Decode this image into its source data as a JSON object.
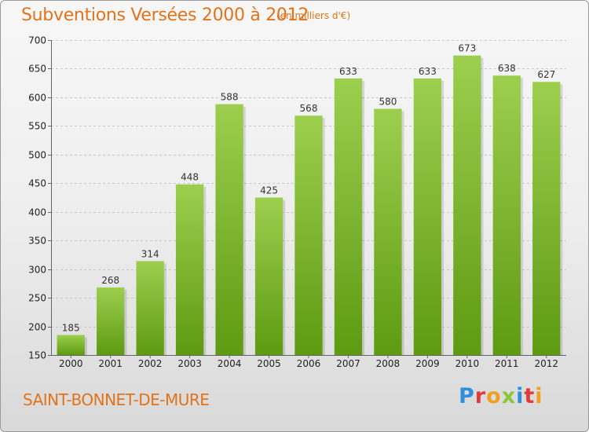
{
  "header": {
    "title": "Subventions Versées 2000 à 2012",
    "subtitle": "(en milliers d'€)"
  },
  "footer": {
    "commune": "SAINT-BONNET-DE-MURE",
    "logo_text": "Proxiti",
    "logo_colors": [
      "#2f8fd8",
      "#e23b3b",
      "#f0a020",
      "#8cc63f",
      "#2f8fd8",
      "#e23b3b",
      "#f0a020"
    ]
  },
  "chart_data": {
    "type": "bar",
    "title": "Subventions Versées 2000 à 2012",
    "subtitle": "(en milliers d'€)",
    "categories": [
      "2000",
      "2001",
      "2002",
      "2003",
      "2004",
      "2005",
      "2006",
      "2007",
      "2008",
      "2009",
      "2010",
      "2011",
      "2012"
    ],
    "values": [
      185,
      268,
      314,
      448,
      588,
      425,
      568,
      633,
      580,
      633,
      673,
      638,
      627
    ],
    "ylim": [
      150,
      700
    ],
    "yticks": [
      150,
      200,
      250,
      300,
      350,
      400,
      450,
      500,
      550,
      600,
      650,
      700
    ],
    "grid": true,
    "bar_color_top": "#9ccf4e",
    "bar_color_bottom": "#5e9a12"
  }
}
